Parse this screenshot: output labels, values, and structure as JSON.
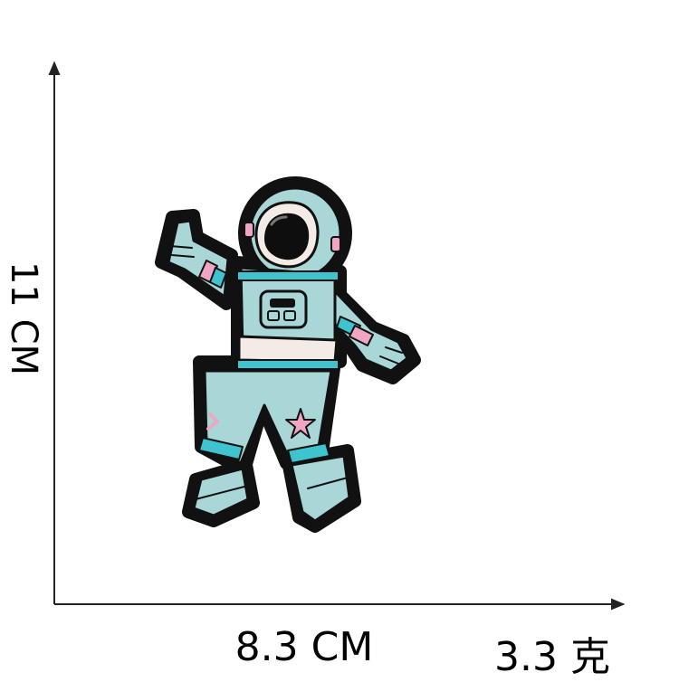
{
  "dimensions": {
    "height": "11 CM",
    "width": "8.3 CM",
    "weight": "3.3 克"
  },
  "product": {
    "subject": "astronaut",
    "style": "embroidered patch",
    "colors": {
      "outline": "#111111",
      "suit": "#a9d6d6",
      "stripe": "#3fc4cf",
      "accent_pink": "#f0a6c2",
      "belt": "#f3ebe6"
    }
  }
}
